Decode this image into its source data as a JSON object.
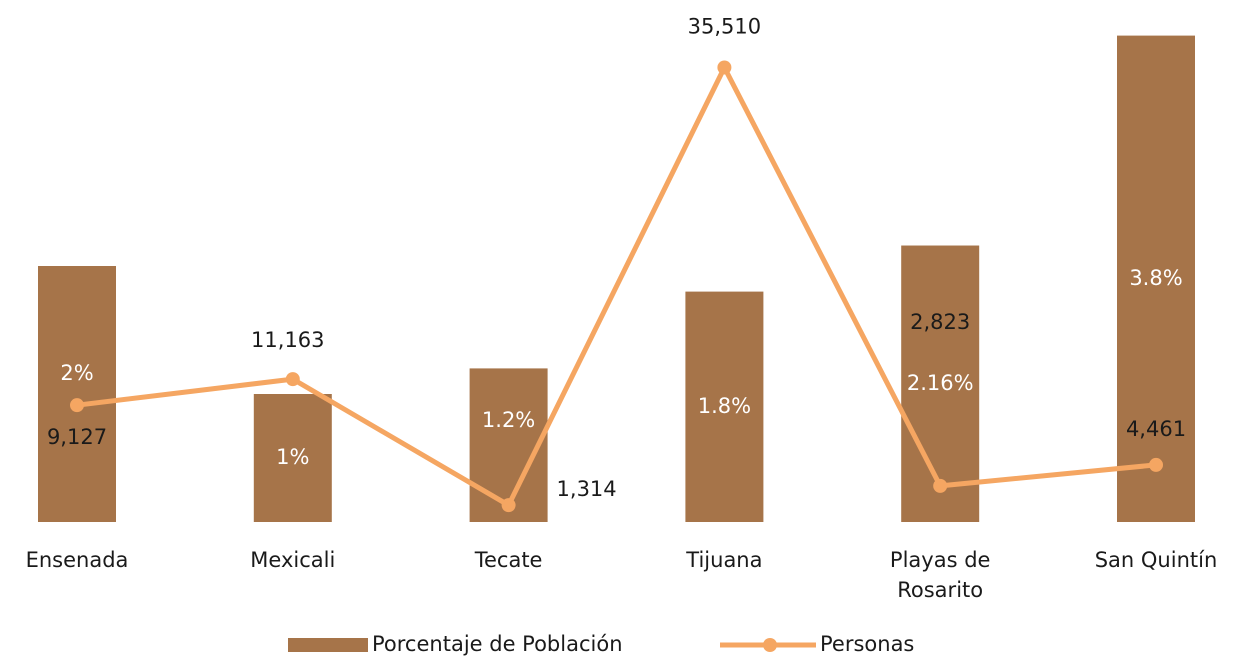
{
  "chart_data": {
    "type": "bar",
    "categories": [
      "Ensenada",
      "Mexicali",
      "Tecate",
      "Tijuana",
      "Playas de Rosarito",
      "San Quintín"
    ],
    "series": [
      {
        "name": "Porcentaje de Población",
        "type": "bar",
        "color": "#a67449",
        "values": [
          2,
          1,
          1.2,
          1.8,
          2.16,
          3.8
        ],
        "value_labels": [
          "2%",
          "1%",
          "1.2%",
          "1.8%",
          "2.16%",
          "3.8%"
        ]
      },
      {
        "name": "Personas",
        "type": "line",
        "axis": "y2",
        "color": "#f5a662",
        "values": [
          9127,
          11163,
          1314,
          35510,
          2823,
          4461
        ],
        "value_labels": [
          "9,127",
          "11,163",
          "1,314",
          "35,510",
          "2,823",
          "4,461"
        ]
      }
    ],
    "ylim": [
      0,
      4
    ],
    "y2lim": [
      0,
      40000
    ],
    "legend": "bottom"
  }
}
